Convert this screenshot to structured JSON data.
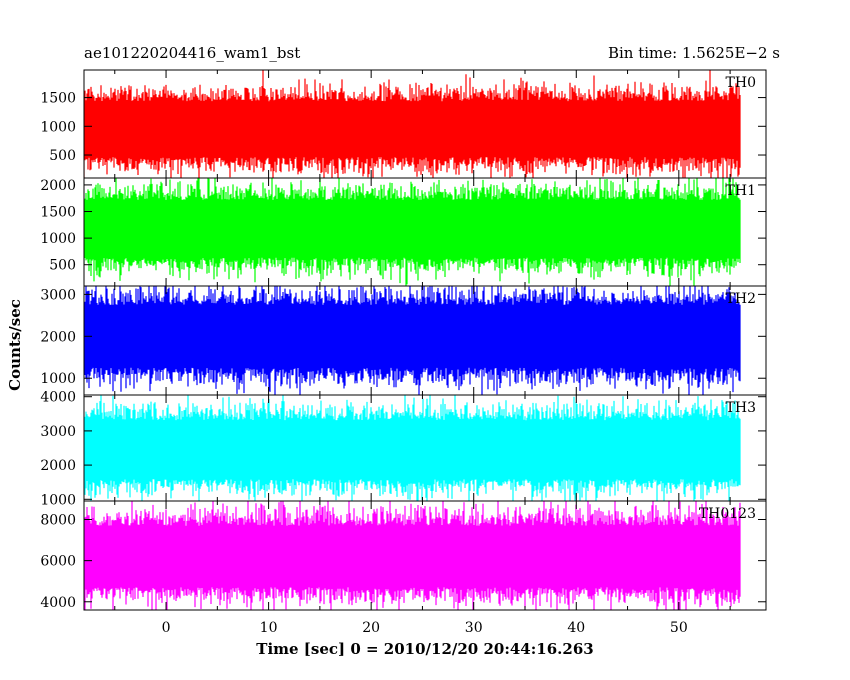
{
  "chart_data": {
    "type": "line",
    "title_left": "ae101220204416_wam1_bst",
    "title_right": "Bin time: 1.5625E−2 s",
    "xlabel": "Time [sec] 0 = 2010/12/20 20:44:16.263",
    "ylabel": "Counts/sec",
    "xlim": [
      -8.0,
      58.5
    ],
    "x_ticks": [
      0,
      10,
      20,
      30,
      40,
      50
    ],
    "x_range_data": [
      -8.0,
      56.0
    ],
    "bin_time_s": 0.015625,
    "series": [
      {
        "name": "TH0",
        "color": "#ff0000",
        "ylim": [
          100,
          1980
        ],
        "y_ticks": [
          500,
          1000,
          1500
        ],
        "typical_range": [
          300,
          1600
        ]
      },
      {
        "name": "TH1",
        "color": "#00ff00",
        "ylim": [
          100,
          2130
        ],
        "y_ticks": [
          500,
          1000,
          1500,
          2000
        ],
        "typical_range": [
          450,
          1900
        ]
      },
      {
        "name": "TH2",
        "color": "#0000ff",
        "ylim": [
          600,
          3200
        ],
        "y_ticks": [
          1000,
          2000,
          3000
        ],
        "typical_range": [
          1000,
          3000
        ]
      },
      {
        "name": "TH3",
        "color": "#00ffff",
        "ylim": [
          950,
          4050
        ],
        "y_ticks": [
          1000,
          2000,
          3000,
          4000
        ],
        "typical_range": [
          1300,
          3600
        ]
      },
      {
        "name": "TH0123",
        "color": "#ff00ff",
        "ylim": [
          3600,
          8900
        ],
        "y_ticks": [
          4000,
          6000,
          8000
        ],
        "typical_range": [
          4200,
          8200
        ]
      }
    ],
    "grid": false,
    "legend": "panel labels top-right"
  }
}
